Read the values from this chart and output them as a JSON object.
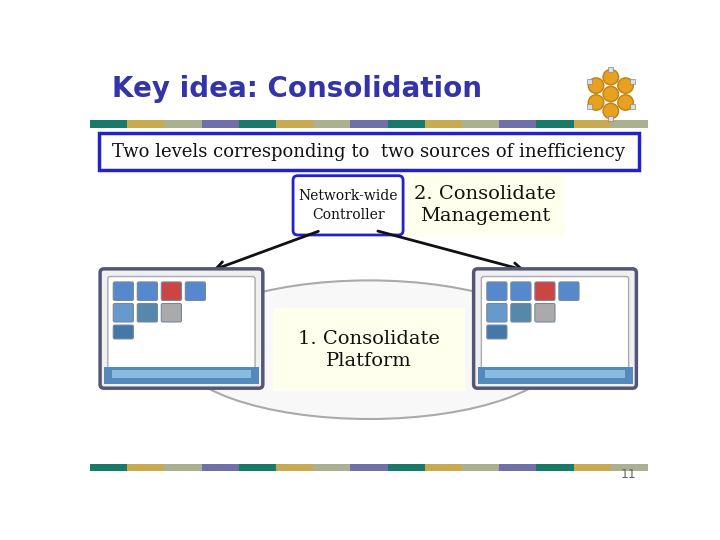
{
  "title": "Key idea: Consolidation",
  "title_color": "#3333aa",
  "title_fontsize": 20,
  "bg_color": "#ffffff",
  "stripe_colors_top": [
    "#1a7a6a",
    "#c8aa50",
    "#aab090",
    "#7070a8",
    "#1a7a6a",
    "#c8aa50",
    "#aab090",
    "#7070a8",
    "#1a7a6a",
    "#c8aa50",
    "#aab090",
    "#7070a8",
    "#1a7a6a",
    "#c8aa50",
    "#aab090"
  ],
  "stripe_colors_bot": [
    "#1a7a6a",
    "#c8aa50",
    "#aab090",
    "#7070a8",
    "#1a7a6a",
    "#c8aa50",
    "#aab090",
    "#7070a8",
    "#1a7a6a",
    "#c8aa50",
    "#aab090",
    "#7070a8",
    "#1a7a6a",
    "#c8aa50",
    "#aab090"
  ],
  "box_text": "Two levels corresponding to  two sources of inefficiency",
  "box_border_color": "#2222cc",
  "box_bg_color": "#ffffff",
  "controller_box_text": "Network-wide\nController",
  "controller_border_color": "#2222cc",
  "controller_bg_color": "#ffffff",
  "mgmt_text": "2. Consolidate\nManagement",
  "mgmt_bg_color": "#ffffee",
  "platform_text": "1. Consolidate\nPlatform",
  "platform_bg_color": "#ffffee",
  "page_num": "11",
  "arrow_color": "#111111",
  "server_border": "#555577",
  "server_bg": "#f0f0f0",
  "server_inner_bg": "#e8e8f0",
  "bottom_bar_color": "#5588bb"
}
